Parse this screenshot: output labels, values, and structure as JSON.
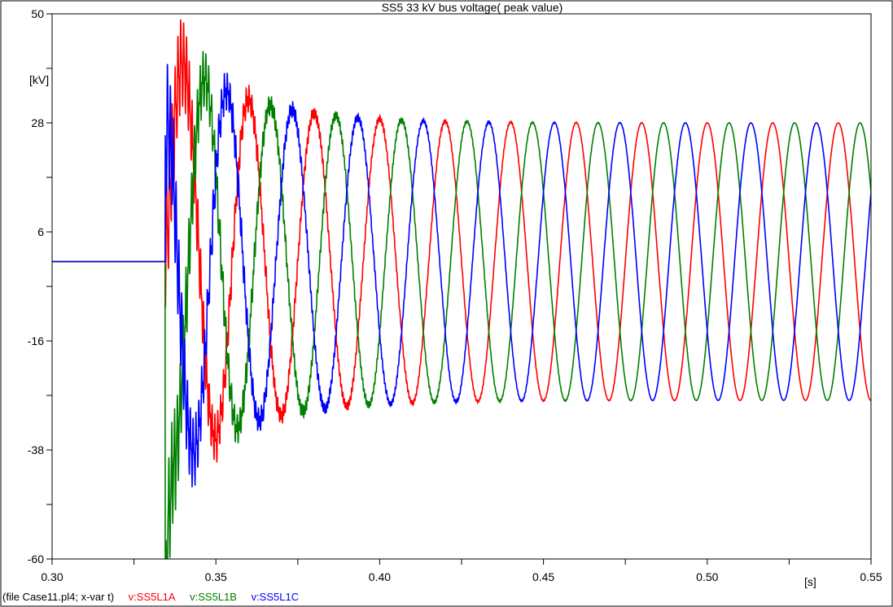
{
  "chart_data": {
    "type": "line",
    "title": "SS5 33 kV bus voltage( peak value)",
    "xlabel": "[s]",
    "ylabel": "[kV]",
    "xlim": [
      0.3,
      0.55
    ],
    "ylim": [
      -60,
      50
    ],
    "x_ticks": [
      "0.30",
      "0.35",
      "0.40",
      "0.45",
      "0.50",
      "0.55"
    ],
    "y_ticks": [
      "50",
      "28",
      "6",
      "-16",
      "-38",
      "-60"
    ],
    "grid": false,
    "frequency_hz": 50,
    "pre_event_value": 0,
    "event_time": 0.3345,
    "steady_state_peak": 28,
    "series": [
      {
        "name": "v:SS5L1A",
        "color": "#ff0000",
        "phase_deg": 90,
        "points": [
          [
            0.3,
            0
          ],
          [
            0.3345,
            0
          ],
          [
            0.341,
            40
          ],
          [
            0.349,
            -35
          ],
          [
            0.361,
            34
          ],
          [
            0.37,
            -32
          ],
          [
            0.38,
            30
          ],
          [
            0.39,
            -29
          ],
          [
            0.55,
            -27
          ]
        ]
      },
      {
        "name": "v:SS5L1B",
        "color": "#008000",
        "phase_deg": -30,
        "points": [
          [
            0.3,
            0
          ],
          [
            0.3345,
            0
          ],
          [
            0.336,
            -56
          ],
          [
            0.344,
            45
          ],
          [
            0.354,
            -34
          ],
          [
            0.364,
            33
          ],
          [
            0.374,
            -31
          ],
          [
            0.384,
            30
          ],
          [
            0.55,
            6
          ]
        ]
      },
      {
        "name": "v:SS5L1C",
        "color": "#0000ff",
        "phase_deg": 210,
        "points": [
          [
            0.3,
            0
          ],
          [
            0.3345,
            0
          ],
          [
            0.339,
            -40
          ],
          [
            0.347,
            35
          ],
          [
            0.357,
            -36
          ],
          [
            0.367,
            34
          ],
          [
            0.377,
            -32
          ],
          [
            0.387,
            31
          ],
          [
            0.55,
            25
          ]
        ]
      }
    ],
    "footer_file": "(file Case11.pl4; x-var t)"
  }
}
